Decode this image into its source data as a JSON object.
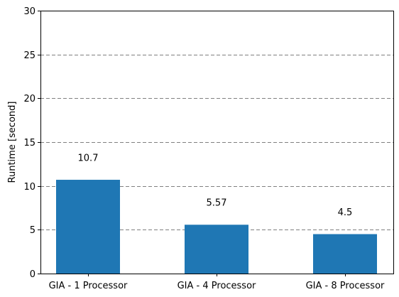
{
  "chart_data": {
    "type": "bar",
    "categories": [
      "GIA - 1 Processor",
      "GIA - 4 Processor",
      "GIA - 8 Processor"
    ],
    "values": [
      10.7,
      5.57,
      4.5
    ],
    "data_labels": [
      "10.7",
      "5.57",
      "4.5"
    ],
    "title": "",
    "xlabel": "",
    "ylabel": "Runtime [second]",
    "ylim": [
      0,
      30
    ],
    "yticks": [
      0,
      5,
      10,
      15,
      20,
      25,
      30
    ],
    "grid": "y-axis dashed",
    "bar_color": "#1f77b4",
    "grid_color": "#808080"
  }
}
